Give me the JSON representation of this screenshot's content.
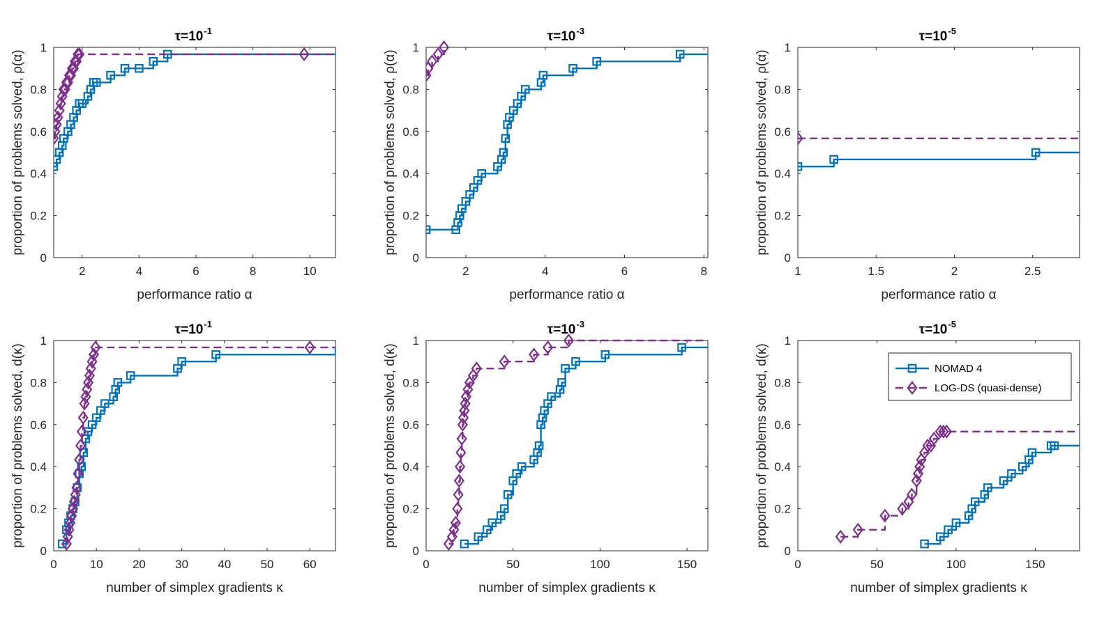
{
  "colors": {
    "nomad": "#0072BD",
    "logds": "#7E2F8E",
    "axis": "#262626"
  },
  "legend": {
    "nomad_label": "NOMAD 4",
    "logds_label": "LOG-DS (quasi-dense)"
  },
  "chart_data": [
    {
      "type": "line",
      "step": true,
      "panel": "top-left",
      "title": {
        "prefix": "τ=10",
        "exponent": "-1"
      },
      "xlabel": "performance ratio α",
      "ylabel": "proportion of problems solved, ρ(α)",
      "xlim": [
        1,
        10.9
      ],
      "ylim": [
        0,
        1
      ],
      "xticks": [
        2,
        4,
        6,
        8,
        10
      ],
      "yticks": [
        0,
        0.2,
        0.4,
        0.6,
        0.8,
        1
      ],
      "series": [
        {
          "name": "NOMAD 4",
          "x": [
            1,
            1.1,
            1.2,
            1.3,
            1.35,
            1.5,
            1.6,
            1.7,
            1.8,
            1.9,
            2.0,
            2.2,
            2.3,
            2.4,
            2.5,
            3.0,
            3.5,
            4.0,
            4.5,
            5.0,
            10.9
          ],
          "y": [
            0.433,
            0.467,
            0.5,
            0.533,
            0.567,
            0.6,
            0.633,
            0.667,
            0.7,
            0.733,
            0.733,
            0.767,
            0.8,
            0.833,
            0.833,
            0.867,
            0.9,
            0.9,
            0.933,
            0.967,
            0.967
          ]
        },
        {
          "name": "LOG-DS (quasi-dense)",
          "x": [
            1,
            1.05,
            1.1,
            1.15,
            1.2,
            1.25,
            1.3,
            1.35,
            1.4,
            1.45,
            1.5,
            1.55,
            1.6,
            1.65,
            1.7,
            1.75,
            1.8,
            1.85,
            1.9,
            9.8,
            10.9
          ],
          "y": [
            0.567,
            0.6,
            0.633,
            0.667,
            0.7,
            0.733,
            0.767,
            0.8,
            0.8,
            0.833,
            0.833,
            0.867,
            0.867,
            0.9,
            0.9,
            0.933,
            0.933,
            0.967,
            0.967,
            0.967,
            0.967
          ]
        }
      ]
    },
    {
      "type": "line",
      "step": true,
      "panel": "top-middle",
      "title": {
        "prefix": "τ=10",
        "exponent": "-3"
      },
      "xlabel": "performance ratio α",
      "ylabel": "proportion of problems solved, ρ(α)",
      "xlim": [
        1,
        8.1
      ],
      "ylim": [
        0,
        1
      ],
      "xticks": [
        2,
        4,
        6,
        8
      ],
      "yticks": [
        0,
        0.2,
        0.4,
        0.6,
        0.8,
        1
      ],
      "series": [
        {
          "name": "NOMAD 4",
          "x": [
            1,
            1.75,
            1.8,
            1.85,
            1.9,
            2.0,
            2.1,
            2.2,
            2.3,
            2.4,
            2.8,
            2.9,
            2.95,
            3.0,
            3.05,
            3.1,
            3.2,
            3.3,
            3.4,
            3.5,
            3.9,
            3.95,
            4.7,
            5.3,
            7.4,
            8.1
          ],
          "y": [
            0.133,
            0.133,
            0.167,
            0.2,
            0.233,
            0.267,
            0.3,
            0.333,
            0.367,
            0.4,
            0.433,
            0.467,
            0.5,
            0.567,
            0.633,
            0.667,
            0.7,
            0.733,
            0.767,
            0.8,
            0.833,
            0.867,
            0.9,
            0.933,
            0.967,
            0.967
          ]
        },
        {
          "name": "LOG-DS (quasi-dense)",
          "x": [
            1,
            1.05,
            1.15,
            1.3,
            1.45
          ],
          "y": [
            0.867,
            0.9,
            0.933,
            0.967,
            1.0
          ]
        }
      ]
    },
    {
      "type": "line",
      "step": true,
      "panel": "top-right",
      "title": {
        "prefix": "τ=10",
        "exponent": "-5"
      },
      "xlabel": "performance ratio α",
      "ylabel": "proportion of problems solved, ρ(α)",
      "xlim": [
        1,
        2.8
      ],
      "ylim": [
        0,
        1
      ],
      "xticks": [
        1,
        1.5,
        2,
        2.5
      ],
      "yticks": [
        0,
        0.2,
        0.4,
        0.6,
        0.8,
        1
      ],
      "series": [
        {
          "name": "NOMAD 4",
          "x": [
            1,
            1.23,
            2.52,
            2.8
          ],
          "y": [
            0.433,
            0.467,
            0.5,
            0.5
          ]
        },
        {
          "name": "LOG-DS (quasi-dense)",
          "x": [
            1,
            2.8
          ],
          "y": [
            0.567,
            0.567
          ]
        }
      ]
    },
    {
      "type": "line",
      "step": true,
      "panel": "bottom-left",
      "title": {
        "prefix": "τ=10",
        "exponent": "-1"
      },
      "xlabel": "number of simplex gradients κ",
      "ylabel": "proportion of problems solved, d(κ)",
      "xlim": [
        0,
        66
      ],
      "ylim": [
        0,
        1
      ],
      "xticks": [
        0,
        10,
        20,
        30,
        40,
        50,
        60
      ],
      "yticks": [
        0,
        0.2,
        0.4,
        0.6,
        0.8,
        1
      ],
      "series": [
        {
          "name": "NOMAD 4",
          "x": [
            2,
            3,
            3.5,
            4,
            4.5,
            5,
            5.5,
            6,
            6.5,
            7,
            7.5,
            8,
            9,
            10,
            11,
            12,
            14,
            14.5,
            15,
            18,
            29,
            30,
            38,
            66
          ],
          "y": [
            0.033,
            0.1,
            0.133,
            0.167,
            0.2,
            0.233,
            0.3,
            0.367,
            0.4,
            0.467,
            0.533,
            0.567,
            0.6,
            0.633,
            0.667,
            0.7,
            0.733,
            0.767,
            0.8,
            0.833,
            0.867,
            0.9,
            0.933,
            0.967
          ]
        },
        {
          "name": "LOG-DS (quasi-dense)",
          "x": [
            3,
            3.3,
            3.6,
            3.9,
            4.2,
            4.5,
            4.8,
            5.1,
            5.4,
            5.7,
            6.0,
            6.3,
            6.6,
            6.9,
            7.2,
            7.5,
            7.8,
            8.1,
            8.4,
            8.7,
            9.0,
            9.4,
            9.8,
            60,
            66
          ],
          "y": [
            0.033,
            0.067,
            0.1,
            0.133,
            0.167,
            0.2,
            0.233,
            0.267,
            0.3,
            0.367,
            0.433,
            0.5,
            0.567,
            0.633,
            0.7,
            0.733,
            0.767,
            0.8,
            0.833,
            0.867,
            0.9,
            0.933,
            0.967,
            0.967,
            0.967
          ]
        }
      ]
    },
    {
      "type": "line",
      "step": true,
      "panel": "bottom-middle",
      "title": {
        "prefix": "τ=10",
        "exponent": "-3"
      },
      "xlabel": "number of simplex gradients κ",
      "ylabel": "proportion of problems solved, d(κ)",
      "xlim": [
        0,
        162
      ],
      "ylim": [
        0,
        1
      ],
      "xticks": [
        0,
        50,
        100,
        150
      ],
      "yticks": [
        0,
        0.2,
        0.4,
        0.6,
        0.8,
        1
      ],
      "series": [
        {
          "name": "NOMAD 4",
          "x": [
            22,
            30,
            35,
            38,
            43,
            45,
            47,
            50,
            52,
            55,
            62,
            64,
            65,
            66,
            67,
            68,
            70,
            72,
            77,
            78,
            80,
            86,
            103,
            147,
            162
          ],
          "y": [
            0.033,
            0.067,
            0.1,
            0.133,
            0.167,
            0.2,
            0.267,
            0.333,
            0.367,
            0.4,
            0.433,
            0.467,
            0.5,
            0.6,
            0.633,
            0.667,
            0.7,
            0.733,
            0.767,
            0.8,
            0.867,
            0.9,
            0.933,
            0.967,
            0.967
          ]
        },
        {
          "name": "LOG-DS (quasi-dense)",
          "x": [
            13,
            15,
            16,
            17,
            18,
            18.5,
            19,
            19.5,
            20,
            20.5,
            21,
            21.5,
            22,
            22.5,
            23,
            24,
            25,
            27,
            29,
            45,
            62,
            70,
            82,
            162
          ],
          "y": [
            0.033,
            0.067,
            0.1,
            0.133,
            0.2,
            0.267,
            0.333,
            0.4,
            0.467,
            0.533,
            0.6,
            0.633,
            0.667,
            0.7,
            0.733,
            0.767,
            0.8,
            0.833,
            0.867,
            0.9,
            0.933,
            0.967,
            1.0,
            1.0
          ]
        }
      ]
    },
    {
      "type": "line",
      "step": true,
      "panel": "bottom-right",
      "title": {
        "prefix": "τ=10",
        "exponent": "-5"
      },
      "xlabel": "number of simplex gradients κ",
      "ylabel": "proportion of problems solved, d(κ)",
      "xlim": [
        0,
        178
      ],
      "ylim": [
        0,
        1
      ],
      "xticks": [
        0,
        50,
        100,
        150
      ],
      "yticks": [
        0,
        0.2,
        0.4,
        0.6,
        0.8,
        1
      ],
      "legend": "top-right",
      "series": [
        {
          "name": "NOMAD 4",
          "x": [
            80,
            90,
            95,
            100,
            108,
            110,
            112,
            118,
            120,
            130,
            135,
            142,
            146,
            148,
            160,
            162,
            178
          ],
          "y": [
            0.033,
            0.067,
            0.1,
            0.133,
            0.167,
            0.2,
            0.233,
            0.267,
            0.3,
            0.333,
            0.367,
            0.4,
            0.433,
            0.467,
            0.5,
            0.5,
            0.5
          ]
        },
        {
          "name": "LOG-DS (quasi-dense)",
          "x": [
            27,
            38,
            55,
            66,
            70,
            72,
            75,
            76,
            77,
            78,
            80,
            82,
            84,
            86,
            90,
            92,
            94,
            178
          ],
          "y": [
            0.067,
            0.1,
            0.167,
            0.2,
            0.233,
            0.267,
            0.333,
            0.367,
            0.4,
            0.433,
            0.467,
            0.5,
            0.5,
            0.533,
            0.567,
            0.567,
            0.567,
            0.567
          ]
        }
      ]
    }
  ]
}
